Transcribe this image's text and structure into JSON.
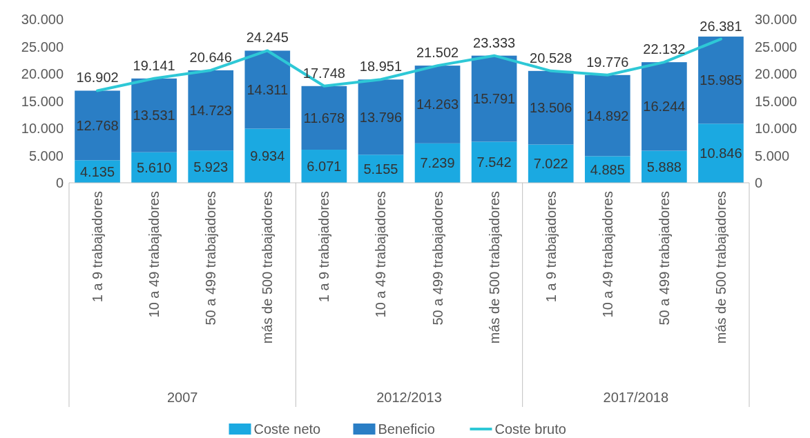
{
  "chart_data": {
    "type": "bar",
    "stacked": true,
    "categories": [
      "1 a 9 trabajadores",
      "10 a 49 trabajadores",
      "50 a 499 trabajadores",
      "más de 500 trabajadores",
      "1 a 9 trabajadores",
      "10 a 49 trabajadores",
      "50 a 499 trabajadores",
      "más de 500 trabajadores",
      "1 a 9 trabajadores",
      "10 a 49 trabajadores",
      "50 a 499 trabajadores",
      "más de 500 trabajadores"
    ],
    "annotations": [
      "2007",
      "2012/2013",
      "2017/2018"
    ],
    "series": [
      {
        "name": "Coste neto",
        "color": "#1ba9e1",
        "values": [
          4135,
          5610,
          5923,
          9934,
          6071,
          5155,
          7239,
          7542,
          7022,
          4885,
          5888,
          10846
        ],
        "value_labels": [
          "4.135",
          "5.610",
          "5.923",
          "9.934",
          "6.071",
          "5.155",
          "7.239",
          "7.542",
          "7.022",
          "4.885",
          "5.888",
          "10.846"
        ]
      },
      {
        "name": "Beneficio",
        "color": "#2a7ec5",
        "values": [
          12768,
          13531,
          14723,
          14311,
          11678,
          13796,
          14263,
          15791,
          13506,
          14892,
          16244,
          15985
        ],
        "value_labels": [
          "12.768",
          "13.531",
          "14.723",
          "14.311",
          "11.678",
          "13.796",
          "14.263",
          "15.791",
          "13.506",
          "14.892",
          "16.244",
          "15.985"
        ]
      },
      {
        "name": "Coste bruto",
        "type": "line",
        "color": "#2ec8d6",
        "values": [
          16902,
          19141,
          20646,
          24245,
          17748,
          18951,
          21502,
          23333,
          20528,
          19776,
          22132,
          26381
        ],
        "value_labels": [
          "16.902",
          "19.141",
          "20.646",
          "24.245",
          "17.748",
          "18.951",
          "21.502",
          "23.333",
          "20.528",
          "19.776",
          "22.132",
          "26.381"
        ]
      }
    ],
    "ylim": [
      0,
      30000
    ],
    "yticks": [
      0,
      {
        "value": 5000,
        "label": "5.000"
      },
      {
        "value": 10000,
        "label": "10.000"
      },
      {
        "value": 15000,
        "label": "15.000"
      },
      {
        "value": 20000,
        "label": "20.000"
      },
      {
        "value": 25000,
        "label": "25.000"
      },
      {
        "value": 30000,
        "label": "30.000"
      }
    ],
    "y2lim": [
      0,
      30000
    ],
    "y2ticks": [
      0,
      {
        "value": 5000,
        "label": "5.000"
      },
      {
        "value": 10000,
        "label": "10.000"
      },
      {
        "value": 15000,
        "label": "15.000"
      },
      {
        "value": 20000,
        "label": "20.000"
      },
      {
        "value": 25000,
        "label": "25.000"
      },
      {
        "value": 30000,
        "label": "30.000"
      }
    ],
    "legend": "bottom"
  }
}
